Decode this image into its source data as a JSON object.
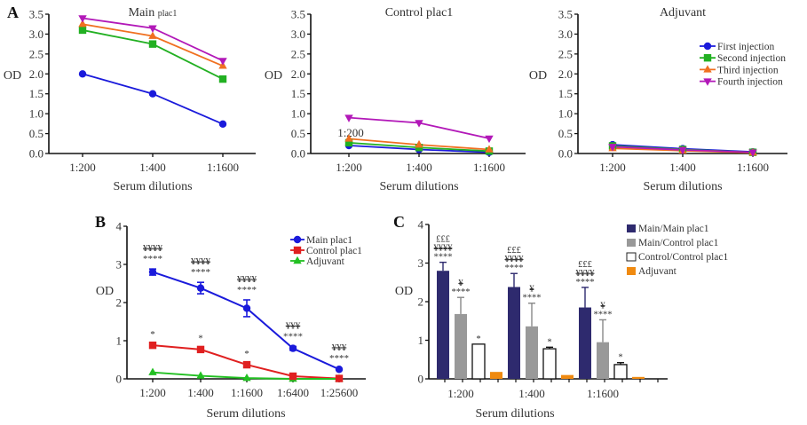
{
  "figure": {
    "panel_letters": [
      "A",
      "B",
      "C"
    ]
  },
  "colors": {
    "first": "#1a1adb",
    "second": "#22b022",
    "third": "#f07020",
    "fourth": "#b218b8",
    "main": "#1a1adb",
    "control": "#e02020",
    "adjuvant_line": "#22c022",
    "bar_main_main": "#2e2a6e",
    "bar_main_control": "#999999",
    "bar_control_control": "#ffffff",
    "bar_adjuvant": "#f08a10"
  },
  "chart_data": [
    {
      "id": "A1",
      "type": "line",
      "title": "Main plac1",
      "title_main": "Main",
      "title_sub": "plac1",
      "xlabel": "Serum dilutions",
      "ylabel": "OD",
      "categories": [
        "1:200",
        "1:400",
        "1:1600"
      ],
      "ylim": [
        0,
        3.5
      ],
      "yticks": [
        "0.0",
        "0.5",
        "1.0",
        "1.5",
        "2.0",
        "2.5",
        "3.0",
        "3.5"
      ],
      "series": [
        {
          "name": "First injection",
          "values": [
            2.0,
            1.5,
            0.74
          ]
        },
        {
          "name": "Second injection",
          "values": [
            3.1,
            2.75,
            1.87
          ]
        },
        {
          "name": "Third injection",
          "values": [
            3.25,
            2.95,
            2.2
          ]
        },
        {
          "name": "Fourth injection",
          "values": [
            3.4,
            3.15,
            2.33
          ]
        }
      ]
    },
    {
      "id": "A2",
      "type": "line",
      "title": "Control plac1",
      "xlabel": "Serum dilutions",
      "ylabel": "OD",
      "annotation": "1:200",
      "categories": [
        "1:200",
        "1:400",
        "1:1600"
      ],
      "ylim": [
        0,
        3.5
      ],
      "yticks": [
        "0.0",
        "0.5",
        "1.0",
        "1.5",
        "2.0",
        "2.5",
        "3.0",
        "3.5"
      ],
      "series": [
        {
          "name": "First injection",
          "values": [
            0.2,
            0.1,
            0.03
          ]
        },
        {
          "name": "Second injection",
          "values": [
            0.27,
            0.15,
            0.06
          ]
        },
        {
          "name": "Third injection",
          "values": [
            0.37,
            0.22,
            0.1
          ]
        },
        {
          "name": "Fourth injection",
          "values": [
            0.9,
            0.77,
            0.38
          ]
        }
      ]
    },
    {
      "id": "A3",
      "type": "line",
      "title": "Adjuvant",
      "xlabel": "Serum dilutions",
      "ylabel": "OD",
      "categories": [
        "1:200",
        "1:400",
        "1:1600"
      ],
      "ylim": [
        0,
        3.5
      ],
      "yticks": [
        "0.0",
        "0.5",
        "1.0",
        "1.5",
        "2.0",
        "2.5",
        "3.0",
        "3.5"
      ],
      "legend_position": "top-right",
      "series": [
        {
          "name": "First injection",
          "values": [
            0.22,
            0.12,
            0.04
          ]
        },
        {
          "name": "Second injection",
          "values": [
            0.19,
            0.1,
            0.03
          ]
        },
        {
          "name": "Third injection",
          "values": [
            0.13,
            0.07,
            0.02
          ]
        },
        {
          "name": "Fourth injection",
          "values": [
            0.17,
            0.09,
            0.03
          ]
        }
      ]
    },
    {
      "id": "B",
      "type": "line",
      "title": "",
      "xlabel": "Serum dilutions",
      "ylabel": "OD",
      "categories": [
        "1:200",
        "1:400",
        "1:1600",
        "1:6400",
        "1:25600"
      ],
      "ylim": [
        0,
        4
      ],
      "yticks": [
        "0",
        "1",
        "2",
        "3",
        "4"
      ],
      "legend_position": "top-right",
      "series": [
        {
          "name": "Main plac1",
          "values": [
            2.8,
            2.38,
            1.85,
            0.8,
            0.25
          ],
          "errors": [
            0.08,
            0.15,
            0.22,
            0.05,
            0.03
          ],
          "annotations": [
            [
              "¥¥¥¥",
              "****"
            ],
            [
              "¥¥¥¥",
              "****"
            ],
            [
              "¥¥¥¥",
              "****"
            ],
            [
              "¥¥¥",
              "****"
            ],
            [
              "¥¥¥",
              "****"
            ]
          ]
        },
        {
          "name": "Control plac1",
          "values": [
            0.88,
            0.77,
            0.37,
            0.07,
            0.01
          ],
          "errors": [
            0.03,
            0.03,
            0.03,
            0.01,
            0.01
          ],
          "annotations": [
            [
              "*"
            ],
            [
              "*"
            ],
            [
              "*"
            ],
            [],
            []
          ]
        },
        {
          "name": "Adjuvant",
          "values": [
            0.17,
            0.08,
            0.02,
            0.0,
            0.0
          ]
        }
      ]
    },
    {
      "id": "C",
      "type": "bar",
      "title": "",
      "xlabel": "Serum dilutions",
      "ylabel": "OD",
      "categories": [
        "1:200",
        "1:400",
        "1:1600"
      ],
      "ylim": [
        0,
        4
      ],
      "yticks": [
        "0",
        "1",
        "2",
        "3",
        "4"
      ],
      "legend_position": "top-right",
      "series": [
        {
          "name": "Main/Main plac1",
          "values": [
            2.8,
            2.38,
            1.85
          ],
          "errors": [
            0.22,
            0.35,
            0.52
          ],
          "annotations": [
            [
              "£££",
              "¥¥¥¥",
              "****"
            ],
            [
              "£££",
              "¥¥¥¥",
              "****"
            ],
            [
              "£££",
              "¥¥¥¥",
              "****"
            ]
          ]
        },
        {
          "name": "Main/Control plac1",
          "values": [
            1.68,
            1.36,
            0.95
          ],
          "errors": [
            0.43,
            0.6,
            0.58
          ],
          "annotations": [
            [
              "¥",
              "****"
            ],
            [
              "¥",
              "****"
            ],
            [
              "¥",
              "****"
            ]
          ]
        },
        {
          "name": "Control/Control plac1",
          "values": [
            0.9,
            0.78,
            0.37
          ],
          "errors": [
            0.0,
            0.04,
            0.05
          ],
          "annotations": [
            [
              "*"
            ],
            [
              "*"
            ],
            [
              "*"
            ]
          ]
        },
        {
          "name": "Adjuvant",
          "values": [
            0.18,
            0.1,
            0.05
          ],
          "errors": [
            0,
            0,
            0
          ],
          "annotations": [
            [],
            [],
            []
          ]
        }
      ]
    }
  ]
}
